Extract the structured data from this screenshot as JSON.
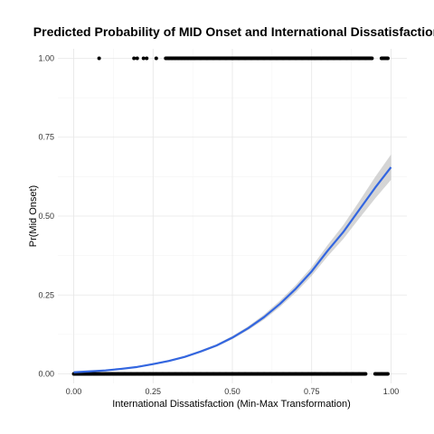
{
  "chart_data": {
    "type": "scatter",
    "title": "Predicted Probability of MID Onset and International Dissatisfaction",
    "xlabel": "International Dissatisfaction (Min-Max Transformation)",
    "ylabel": "Pr(Mid Onset)",
    "xlim": [
      -0.05,
      1.05
    ],
    "ylim": [
      -0.03,
      1.03
    ],
    "x_ticks": [
      0,
      0.25,
      0.5,
      0.75,
      1
    ],
    "x_tick_labels": [
      "0.00",
      "0.25",
      "0.50",
      "0.75",
      "1.00"
    ],
    "y_ticks": [
      0,
      0.25,
      0.5,
      0.75,
      1
    ],
    "y_tick_labels": [
      "0.00",
      "0.25",
      "0.50",
      "0.75",
      "1.00"
    ],
    "grid": true,
    "points_y1": [
      {
        "x": 0.08,
        "y": 1
      },
      {
        "x": 0.19,
        "y": 1
      },
      {
        "x": 0.2,
        "y": 1
      },
      {
        "x": 0.22,
        "y": 1
      },
      {
        "x": 0.23,
        "y": 1
      },
      {
        "x": 0.26,
        "y": 1
      },
      {
        "x": 0.29,
        "y": 1
      },
      {
        "x": 0.3,
        "y": 1
      },
      {
        "x": 0.31,
        "y": 1
      },
      {
        "x": 0.32,
        "y": 1
      },
      {
        "x": 0.33,
        "y": 1
      },
      {
        "x": 0.34,
        "y": 1
      },
      {
        "x": 0.35,
        "y": 1
      },
      {
        "x": 0.36,
        "y": 1
      },
      {
        "x": 0.37,
        "y": 1
      },
      {
        "x": 0.38,
        "y": 1
      },
      {
        "x": 0.4,
        "y": 1
      },
      {
        "x": 0.42,
        "y": 1
      },
      {
        "x": 0.44,
        "y": 1
      },
      {
        "x": 0.46,
        "y": 1
      },
      {
        "x": 0.48,
        "y": 1
      },
      {
        "x": 0.5,
        "y": 1
      },
      {
        "x": 0.52,
        "y": 1
      },
      {
        "x": 0.54,
        "y": 1
      },
      {
        "x": 0.56,
        "y": 1
      },
      {
        "x": 0.58,
        "y": 1
      },
      {
        "x": 0.6,
        "y": 1
      },
      {
        "x": 0.62,
        "y": 1
      },
      {
        "x": 0.64,
        "y": 1
      },
      {
        "x": 0.66,
        "y": 1
      },
      {
        "x": 0.68,
        "y": 1
      },
      {
        "x": 0.7,
        "y": 1
      },
      {
        "x": 0.72,
        "y": 1
      },
      {
        "x": 0.74,
        "y": 1
      },
      {
        "x": 0.76,
        "y": 1
      },
      {
        "x": 0.78,
        "y": 1
      },
      {
        "x": 0.8,
        "y": 1
      },
      {
        "x": 0.82,
        "y": 1
      },
      {
        "x": 0.84,
        "y": 1
      },
      {
        "x": 0.86,
        "y": 1
      },
      {
        "x": 0.88,
        "y": 1
      },
      {
        "x": 0.9,
        "y": 1
      },
      {
        "x": 0.92,
        "y": 1
      },
      {
        "x": 0.94,
        "y": 1
      },
      {
        "x": 0.97,
        "y": 1
      },
      {
        "x": 0.99,
        "y": 1
      }
    ],
    "points_y0": [
      {
        "x": 0,
        "y": 0
      },
      {
        "x": 0.02,
        "y": 0
      },
      {
        "x": 0.04,
        "y": 0
      },
      {
        "x": 0.06,
        "y": 0
      },
      {
        "x": 0.08,
        "y": 0
      },
      {
        "x": 0.1,
        "y": 0
      },
      {
        "x": 0.12,
        "y": 0
      },
      {
        "x": 0.14,
        "y": 0
      },
      {
        "x": 0.16,
        "y": 0
      },
      {
        "x": 0.18,
        "y": 0
      },
      {
        "x": 0.2,
        "y": 0
      },
      {
        "x": 0.22,
        "y": 0
      },
      {
        "x": 0.24,
        "y": 0
      },
      {
        "x": 0.26,
        "y": 0
      },
      {
        "x": 0.28,
        "y": 0
      },
      {
        "x": 0.3,
        "y": 0
      },
      {
        "x": 0.32,
        "y": 0
      },
      {
        "x": 0.34,
        "y": 0
      },
      {
        "x": 0.36,
        "y": 0
      },
      {
        "x": 0.38,
        "y": 0
      },
      {
        "x": 0.4,
        "y": 0
      },
      {
        "x": 0.42,
        "y": 0
      },
      {
        "x": 0.44,
        "y": 0
      },
      {
        "x": 0.46,
        "y": 0
      },
      {
        "x": 0.48,
        "y": 0
      },
      {
        "x": 0.5,
        "y": 0
      },
      {
        "x": 0.52,
        "y": 0
      },
      {
        "x": 0.54,
        "y": 0
      },
      {
        "x": 0.56,
        "y": 0
      },
      {
        "x": 0.58,
        "y": 0
      },
      {
        "x": 0.6,
        "y": 0
      },
      {
        "x": 0.62,
        "y": 0
      },
      {
        "x": 0.64,
        "y": 0
      },
      {
        "x": 0.66,
        "y": 0
      },
      {
        "x": 0.68,
        "y": 0
      },
      {
        "x": 0.7,
        "y": 0
      },
      {
        "x": 0.72,
        "y": 0
      },
      {
        "x": 0.74,
        "y": 0
      },
      {
        "x": 0.76,
        "y": 0
      },
      {
        "x": 0.78,
        "y": 0
      },
      {
        "x": 0.8,
        "y": 0
      },
      {
        "x": 0.82,
        "y": 0
      },
      {
        "x": 0.84,
        "y": 0
      },
      {
        "x": 0.86,
        "y": 0
      },
      {
        "x": 0.88,
        "y": 0
      },
      {
        "x": 0.9,
        "y": 0
      },
      {
        "x": 0.92,
        "y": 0
      },
      {
        "x": 0.95,
        "y": 0
      },
      {
        "x": 0.97,
        "y": 0
      },
      {
        "x": 0.99,
        "y": 0
      }
    ],
    "fit_line": {
      "x": [
        0,
        0.05,
        0.1,
        0.15,
        0.2,
        0.25,
        0.3,
        0.35,
        0.4,
        0.45,
        0.5,
        0.55,
        0.6,
        0.65,
        0.7,
        0.75,
        0.8,
        0.85,
        0.9,
        0.95,
        1
      ],
      "y": [
        0.005,
        0.008,
        0.011,
        0.016,
        0.022,
        0.031,
        0.041,
        0.054,
        0.071,
        0.09,
        0.115,
        0.145,
        0.18,
        0.222,
        0.27,
        0.325,
        0.39,
        0.45,
        0.52,
        0.59,
        0.655
      ],
      "ci_lower": [
        0.003,
        0.006,
        0.009,
        0.014,
        0.02,
        0.028,
        0.038,
        0.051,
        0.067,
        0.086,
        0.11,
        0.139,
        0.172,
        0.212,
        0.258,
        0.311,
        0.372,
        0.428,
        0.493,
        0.556,
        0.615
      ],
      "ci_upper": [
        0.007,
        0.01,
        0.013,
        0.018,
        0.024,
        0.034,
        0.044,
        0.057,
        0.075,
        0.094,
        0.12,
        0.151,
        0.188,
        0.232,
        0.282,
        0.339,
        0.408,
        0.472,
        0.547,
        0.624,
        0.695
      ]
    },
    "colors": {
      "line": "#3366e0",
      "band": "#b3b3b3",
      "points": "#000000",
      "grid": "#e6e6e6"
    }
  }
}
